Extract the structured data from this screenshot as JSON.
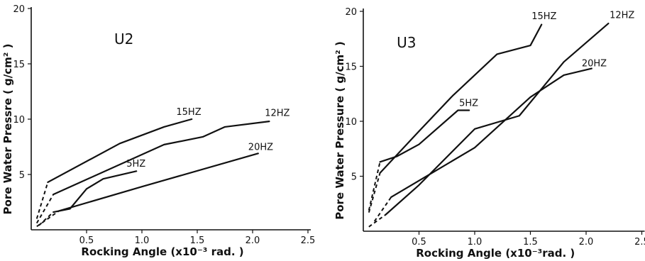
{
  "chart_data": [
    {
      "type": "line",
      "panel_label": "U2",
      "xlabel": "Rocking Angle (x10⁻³ rad. )",
      "ylabel": "Pore Water Pressre ( g/cm² )",
      "xlim": [
        0,
        2.5
      ],
      "ylim": [
        0,
        20
      ],
      "x_ticks": [
        0.5,
        1.0,
        1.5,
        2.0,
        2.5
      ],
      "x_tick_labels": [
        "0.5",
        "1.0",
        "1.5",
        "2.0",
        "2.5"
      ],
      "y_ticks": [
        5,
        10,
        15,
        20
      ],
      "y_tick_labels": [
        "5",
        "10",
        "15",
        "20"
      ],
      "series": [
        {
          "name": "15HZ",
          "dashed_start": [
            [
              0.05,
              1.0
            ],
            [
              0.15,
              4.3
            ]
          ],
          "points": [
            [
              0.15,
              4.3
            ],
            [
              0.8,
              7.8
            ],
            [
              1.2,
              9.3
            ],
            [
              1.45,
              10.0
            ]
          ],
          "label_at": [
            1.4,
            10.4
          ]
        },
        {
          "name": "12HZ",
          "dashed_start": [
            [
              0.05,
              0.6
            ],
            [
              0.2,
              3.2
            ]
          ],
          "points": [
            [
              0.2,
              3.2
            ],
            [
              1.2,
              7.7
            ],
            [
              1.55,
              8.4
            ],
            [
              1.75,
              9.3
            ],
            [
              2.15,
              9.8
            ]
          ],
          "label_at": [
            2.2,
            10.3
          ]
        },
        {
          "name": "5HZ",
          "dashed_start": [
            [
              0.07,
              0.4
            ],
            [
              0.2,
              1.6
            ]
          ],
          "points": [
            [
              0.2,
              1.6
            ],
            [
              0.35,
              1.9
            ],
            [
              0.5,
              3.7
            ],
            [
              0.65,
              4.6
            ],
            [
              0.95,
              5.3
            ]
          ],
          "label_at": [
            0.95,
            5.7
          ]
        },
        {
          "name": "20HZ",
          "dashed_start": [
            [
              0.05,
              0.3
            ],
            [
              0.25,
              1.7
            ]
          ],
          "points": [
            [
              0.25,
              1.7
            ],
            [
              1.0,
              3.9
            ],
            [
              2.05,
              6.9
            ]
          ],
          "label_at": [
            2.05,
            7.2
          ]
        }
      ]
    },
    {
      "type": "line",
      "panel_label": "U3",
      "xlabel": "Rocking Angle (x10⁻³rad. )",
      "ylabel": "Pore Water Pressure ( g/cm² )",
      "xlim": [
        0,
        2.5
      ],
      "ylim": [
        0,
        20
      ],
      "x_ticks": [
        0.5,
        1.0,
        1.5,
        2.0,
        2.5
      ],
      "x_tick_labels": [
        "0.5",
        "1.0",
        "1.5",
        "2.0",
        "2.5"
      ],
      "y_ticks": [
        5,
        10,
        15,
        20
      ],
      "y_tick_labels": [
        "5",
        "10",
        "15",
        "20"
      ],
      "series": [
        {
          "name": "15HZ",
          "dashed_start": [
            [
              0.05,
              1.7
            ],
            [
              0.15,
              5.3
            ]
          ],
          "points": [
            [
              0.15,
              5.3
            ],
            [
              0.5,
              9.1
            ],
            [
              0.8,
              12.3
            ],
            [
              1.2,
              16.1
            ],
            [
              1.5,
              16.9
            ],
            [
              1.6,
              18.8
            ]
          ],
          "label_at": [
            1.6,
            19.3
          ]
        },
        {
          "name": "12HZ",
          "dashed_start": [
            [
              0.05,
              0.4
            ],
            [
              0.2,
              1.5
            ]
          ],
          "points": [
            [
              0.2,
              1.5
            ],
            [
              0.5,
              4.2
            ],
            [
              1.0,
              9.3
            ],
            [
              1.4,
              10.5
            ],
            [
              1.8,
              15.4
            ],
            [
              2.2,
              18.9
            ]
          ],
          "label_at": [
            2.3,
            19.4
          ]
        },
        {
          "name": "5HZ",
          "dashed_start": [
            [
              0.05,
              1.9
            ],
            [
              0.15,
              6.3
            ]
          ],
          "points": [
            [
              0.15,
              6.3
            ],
            [
              0.3,
              6.8
            ],
            [
              0.5,
              7.9
            ],
            [
              0.85,
              11.0
            ],
            [
              0.95,
              11.0
            ]
          ],
          "label_at": [
            0.95,
            11.4
          ]
        },
        {
          "name": "20HZ",
          "dashed_start": [
            [
              0.1,
              0.9
            ],
            [
              0.25,
              3.1
            ]
          ],
          "points": [
            [
              0.25,
              3.1
            ],
            [
              1.0,
              7.6
            ],
            [
              1.5,
              12.2
            ],
            [
              1.8,
              14.2
            ],
            [
              2.05,
              14.8
            ]
          ],
          "label_at": [
            2.05,
            15.0
          ]
        }
      ]
    }
  ]
}
